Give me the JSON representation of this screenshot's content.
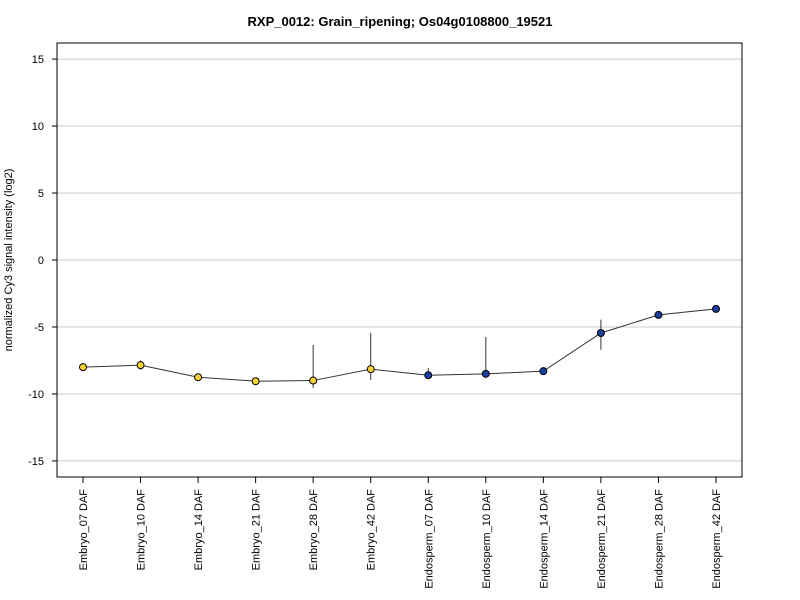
{
  "chart_data": {
    "type": "line",
    "title": "RXP_0012: Grain_ripening; Os04g0108800_19521",
    "xlabel": "",
    "ylabel": "normalized Cy3 signal intensity (log2)",
    "ylim": [
      -16.2,
      16.2
    ],
    "yticks": [
      15,
      10,
      5,
      0,
      -5,
      -10,
      -15
    ],
    "grid": true,
    "legend": "none",
    "colors": {
      "embryo": "#f5d335",
      "endosperm": "#1a3f9e",
      "line": "#333333",
      "grid": "#cccccc"
    },
    "categories": [
      "Embryo_07 DAF",
      "Embryo_10 DAF",
      "Embryo_14 DAF",
      "Embryo_21 DAF",
      "Embryo_28 DAF",
      "Embryo_42 DAF",
      "Endosperm_07 DAF",
      "Endosperm_10 DAF",
      "Endosperm_14 DAF",
      "Endosperm_21 DAF",
      "Endosperm_28 DAF",
      "Endosperm_42 DAF"
    ],
    "values": [
      -8.0,
      -7.85,
      -8.75,
      -9.05,
      -9.0,
      -8.15,
      -8.6,
      -8.5,
      -8.3,
      -5.45,
      -4.1,
      -3.65
    ],
    "err_lo": [
      -8.25,
      -8.2,
      -8.95,
      -9.15,
      -9.55,
      -8.95,
      -8.8,
      -8.6,
      -8.4,
      -6.7,
      -4.25,
      -3.75
    ],
    "err_hi": [
      -7.75,
      -7.5,
      -8.5,
      -8.95,
      -6.35,
      -5.45,
      -8.05,
      -5.75,
      -8.2,
      -4.45,
      -3.9,
      -3.5
    ],
    "groups": [
      "embryo",
      "embryo",
      "embryo",
      "embryo",
      "embryo",
      "embryo",
      "endosperm",
      "endosperm",
      "endosperm",
      "endosperm",
      "endosperm",
      "endosperm"
    ]
  }
}
